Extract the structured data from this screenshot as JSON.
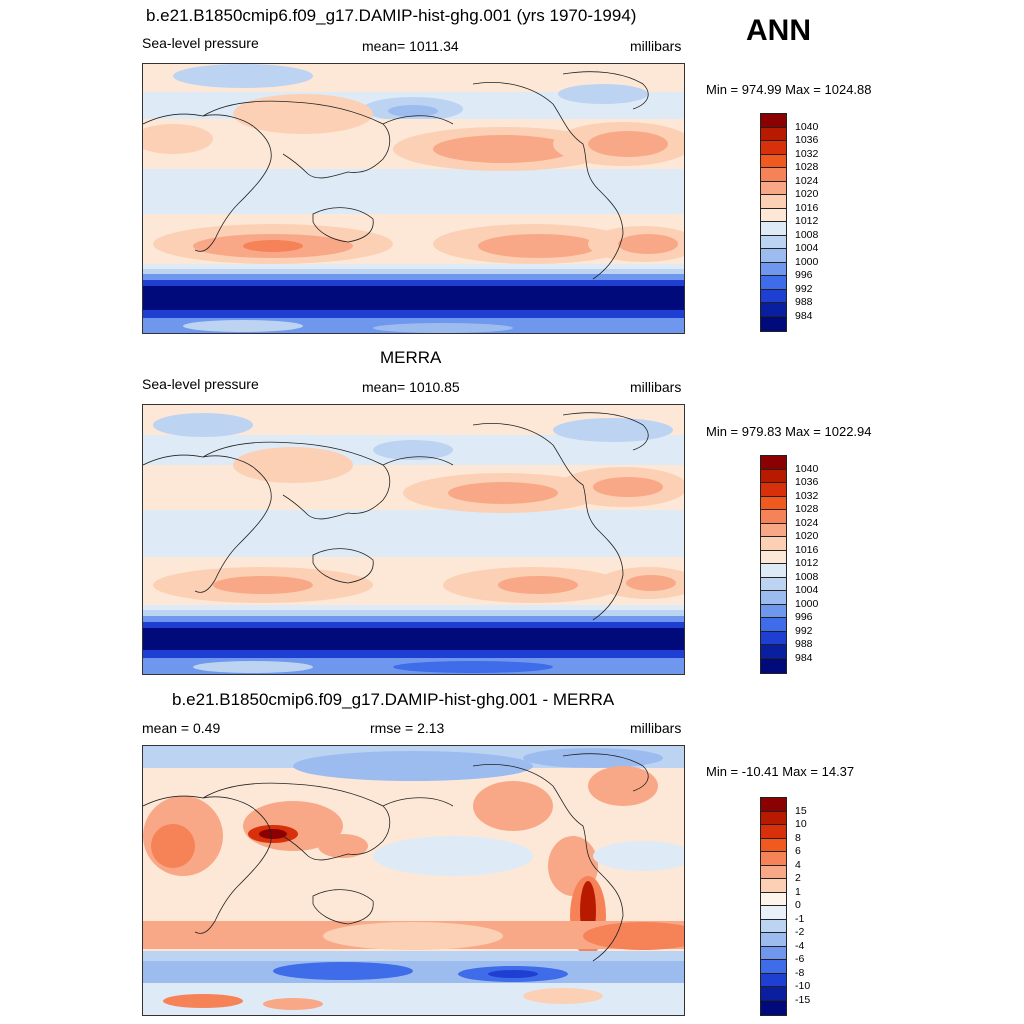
{
  "annotation": "ANN",
  "panels": [
    {
      "title": "b.e21.B1850cmip6.f09_g17.DAMIP-hist-ghg.001 (yrs 1970-1994)",
      "left": "Sea-level pressure",
      "center": "mean= 1011.34",
      "right": "millibars",
      "minmax": "Min = 974.99 Max = 1024.88"
    },
    {
      "title": "MERRA",
      "left": "Sea-level pressure",
      "center": "mean= 1010.85",
      "right": "millibars",
      "minmax": "Min = 979.83 Max = 1022.94"
    },
    {
      "title": "b.e21.B1850cmip6.f09_g17.DAMIP-hist-ghg.001 - MERRA",
      "left": "mean =   0.49",
      "center": "rmse =   2.13",
      "right": "millibars",
      "minmax": "Min = -10.41 Max =  14.37"
    }
  ],
  "colorbars": [
    {
      "labels": [
        "1040",
        "1036",
        "1032",
        "1028",
        "1024",
        "1020",
        "1016",
        "1012",
        "1008",
        "1004",
        "1000",
        "996",
        "992",
        "988",
        "984"
      ],
      "colors": [
        "#8b0000",
        "#b81a00",
        "#d8300a",
        "#f05a1e",
        "#f68258",
        "#f9a887",
        "#fcd0b5",
        "#fde8d7",
        "#deebf7",
        "#bdd3f2",
        "#9cbcf0",
        "#6f97ee",
        "#3f6ce8",
        "#1f3fd2",
        "#0a1ea0",
        "#000a7a"
      ]
    },
    {
      "labels": [
        "1040",
        "1036",
        "1032",
        "1028",
        "1024",
        "1020",
        "1016",
        "1012",
        "1008",
        "1004",
        "1000",
        "996",
        "992",
        "988",
        "984"
      ],
      "colors": [
        "#8b0000",
        "#b81a00",
        "#d8300a",
        "#f05a1e",
        "#f68258",
        "#f9a887",
        "#fcd0b5",
        "#fde8d7",
        "#deebf7",
        "#bdd3f2",
        "#9cbcf0",
        "#6f97ee",
        "#3f6ce8",
        "#1f3fd2",
        "#0a1ea0",
        "#000a7a"
      ]
    },
    {
      "labels": [
        "15",
        "10",
        "8",
        "6",
        "4",
        "2",
        "1",
        "0",
        "-1",
        "-2",
        "-4",
        "-6",
        "-8",
        "-10",
        "-15"
      ],
      "colors": [
        "#8b0000",
        "#b81a00",
        "#d8300a",
        "#f05a1e",
        "#f68258",
        "#f9a887",
        "#fcd0b5",
        "#fff4ec",
        "#e8f0fa",
        "#bdd3f2",
        "#9cbcf0",
        "#6f97ee",
        "#3f6ce8",
        "#1f3fd2",
        "#0a1ea0",
        "#000a7a"
      ]
    }
  ],
  "chart_data": [
    {
      "type": "heatmap",
      "title": "b.e21.B1850cmip6.f09_g17.DAMIP-hist-ghg.001 (yrs 1970-1994)",
      "variable": "Sea-level pressure",
      "units": "millibars",
      "mean": 1011.34,
      "min": 974.99,
      "max": 1024.88,
      "levels": [
        984,
        988,
        992,
        996,
        1000,
        1004,
        1008,
        1012,
        1016,
        1020,
        1024,
        1028,
        1032,
        1036,
        1040
      ]
    },
    {
      "type": "heatmap",
      "title": "MERRA",
      "variable": "Sea-level pressure",
      "units": "millibars",
      "mean": 1010.85,
      "min": 979.83,
      "max": 1022.94,
      "levels": [
        984,
        988,
        992,
        996,
        1000,
        1004,
        1008,
        1012,
        1016,
        1020,
        1024,
        1028,
        1032,
        1036,
        1040
      ]
    },
    {
      "type": "heatmap",
      "title": "b.e21.B1850cmip6.f09_g17.DAMIP-hist-ghg.001 - MERRA",
      "units": "millibars",
      "mean": 0.49,
      "rmse": 2.13,
      "min": -10.41,
      "max": 14.37,
      "levels": [
        -15,
        -10,
        -8,
        -6,
        -4,
        -2,
        -1,
        0,
        1,
        2,
        4,
        6,
        8,
        10,
        15
      ]
    }
  ]
}
